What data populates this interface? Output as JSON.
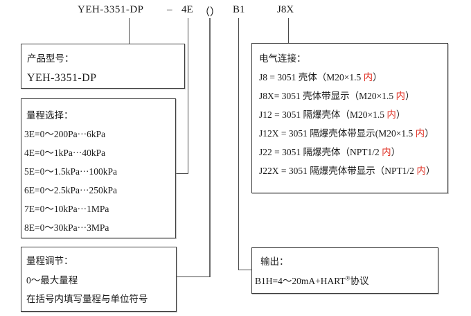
{
  "header": {
    "model": "YEH-3351-DP",
    "dash": "–",
    "seg_range": "4E",
    "seg_paren": "（）",
    "seg_output": "B1",
    "seg_electrical": "J8X"
  },
  "product": {
    "label": "产品型号：",
    "value": "YEH-3351-DP"
  },
  "range": {
    "label": "量程选择：",
    "items": [
      "3E=0～200Pa···6kPa",
      "4E=0～1kPa···40kPa",
      "5E=0～1.5kPa···100kPa",
      "6E=0～2.5kPa···250kPa",
      "7E=0～10kPa···1MPa",
      "8E=0～30kPa···3MPa"
    ]
  },
  "adjust": {
    "label": "量程调节：",
    "lines": [
      "0～最大量程",
      "在括号内填写量程与单位符号"
    ]
  },
  "electrical": {
    "label": "电气连接：",
    "items": [
      {
        "pre": "J8 = 3051 壳体（M20×1.5 ",
        "red": "内",
        "post": "）"
      },
      {
        "pre": "J8X= 3051 壳体带显示（M20×1.5 ",
        "red": "内",
        "post": "）"
      },
      {
        "pre": "J12 = 3051 隔爆壳体（M20×1.5 ",
        "red": "内",
        "post": "）"
      },
      {
        "pre": "J12X = 3051 隔爆壳体带显示(M20×1.5 ",
        "red": "内",
        "post": "）"
      },
      {
        "pre": "J22 = 3051 隔爆壳体（NPT1/2 ",
        "red": "内",
        "post": "）"
      },
      {
        "pre": "J22X = 3051 隔爆壳体带显示（NPT1/2 ",
        "red": "内",
        "post": "）"
      }
    ]
  },
  "output": {
    "label": "输出：",
    "value_pre": "B1H=4～20mA+HART",
    "value_sup": "®",
    "value_post": "协议"
  },
  "colors": {
    "background": "#ffffff",
    "text": "#1a1a1a",
    "accent_red": "#e03226",
    "line": "#4a4a4a"
  }
}
